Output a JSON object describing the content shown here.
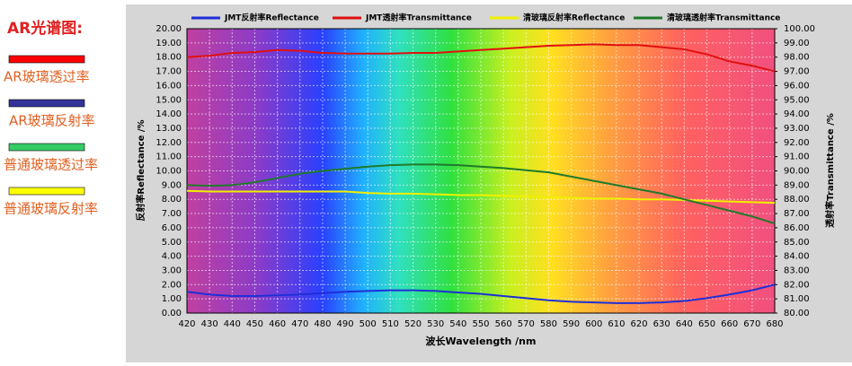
{
  "side_panel": {
    "title": "AR光谱图:",
    "items": [
      {
        "label": "AR玻璃透过率",
        "color": "#ff0000"
      },
      {
        "label": "AR玻璃反射率",
        "color": "#333399"
      },
      {
        "label": "普通玻璃透过率",
        "color": "#33cc66"
      },
      {
        "label": "普通玻璃反射率",
        "color": "#ffff00"
      }
    ]
  },
  "chart_data": {
    "type": "line",
    "x_label": "波长Wavelength /nm",
    "y_label": "反射率Reflectance /%",
    "y2_label": "透射率Transmittance /%",
    "x": [
      420,
      430,
      440,
      450,
      460,
      470,
      480,
      490,
      500,
      510,
      520,
      530,
      540,
      550,
      560,
      570,
      580,
      590,
      600,
      610,
      620,
      630,
      640,
      650,
      660,
      670,
      680
    ],
    "xlim": [
      420,
      680
    ],
    "xticks": [
      420,
      430,
      440,
      450,
      460,
      470,
      480,
      490,
      500,
      510,
      520,
      530,
      540,
      550,
      560,
      570,
      580,
      590,
      600,
      610,
      620,
      630,
      640,
      650,
      660,
      670,
      680
    ],
    "ylim": [
      0,
      20
    ],
    "yticks": [
      {
        "value": 0,
        "label": "0.00"
      },
      {
        "value": 1,
        "label": "1.00"
      },
      {
        "value": 2,
        "label": "2.00"
      },
      {
        "value": 3,
        "label": "3.00"
      },
      {
        "value": 4,
        "label": "4.00"
      },
      {
        "value": 5,
        "label": "5.00"
      },
      {
        "value": 6,
        "label": "6.00"
      },
      {
        "value": 7,
        "label": "7.00"
      },
      {
        "value": 8,
        "label": "8.00"
      },
      {
        "value": 9,
        "label": "9.00"
      },
      {
        "value": 10,
        "label": "10.00"
      },
      {
        "value": 11,
        "label": "11.00"
      },
      {
        "value": 12,
        "label": "12.00"
      },
      {
        "value": 13,
        "label": "13.00"
      },
      {
        "value": 14,
        "label": "14.00"
      },
      {
        "value": 15,
        "label": "15.00"
      },
      {
        "value": 16,
        "label": "16.00"
      },
      {
        "value": 17,
        "label": "17.00"
      },
      {
        "value": 18,
        "label": "18.00"
      },
      {
        "value": 19,
        "label": "19.00"
      },
      {
        "value": 20,
        "label": "20.00"
      }
    ],
    "y2lim": [
      80,
      100
    ],
    "y2ticks": [
      {
        "value": 80,
        "label": "80.00"
      },
      {
        "value": 81,
        "label": "81.00"
      },
      {
        "value": 82,
        "label": "82.00"
      },
      {
        "value": 83,
        "label": "83.00"
      },
      {
        "value": 84,
        "label": "84.00"
      },
      {
        "value": 85,
        "label": "85.00"
      },
      {
        "value": 86,
        "label": "86.00"
      },
      {
        "value": 87,
        "label": "87.00"
      },
      {
        "value": 88,
        "label": "88.00"
      },
      {
        "value": 89,
        "label": "89.00"
      },
      {
        "value": 90,
        "label": "90.00"
      },
      {
        "value": 91,
        "label": "91.00"
      },
      {
        "value": 92,
        "label": "92.00"
      },
      {
        "value": 93,
        "label": "93.00"
      },
      {
        "value": 94,
        "label": "94.00"
      },
      {
        "value": 95,
        "label": "95.00"
      },
      {
        "value": 96,
        "label": "96.00"
      },
      {
        "value": 97,
        "label": "97.00"
      },
      {
        "value": 98,
        "label": "98.00"
      },
      {
        "value": 99,
        "label": "99.00"
      },
      {
        "value": 100,
        "label": "100.00"
      }
    ],
    "grid": true,
    "series": [
      {
        "name": "JMT反射率Reflectance",
        "color": "#1f2fd6",
        "values": [
          1.5,
          1.3,
          1.2,
          1.2,
          1.25,
          1.3,
          1.4,
          1.5,
          1.55,
          1.6,
          1.6,
          1.55,
          1.45,
          1.35,
          1.2,
          1.05,
          0.9,
          0.8,
          0.75,
          0.7,
          0.7,
          0.75,
          0.85,
          1.05,
          1.3,
          1.6,
          2.0
        ]
      },
      {
        "name": "JMT透射率Transmittance",
        "color": "#e01010",
        "axis": "y2",
        "values": [
          98.0,
          98.1,
          98.3,
          98.35,
          98.5,
          98.45,
          98.3,
          98.25,
          98.25,
          98.25,
          98.3,
          98.3,
          98.4,
          98.5,
          98.6,
          98.7,
          98.8,
          98.85,
          98.9,
          98.85,
          98.85,
          98.7,
          98.55,
          98.2,
          97.7,
          97.4,
          97.0
        ]
      },
      {
        "name": "清玻璃反射率Reflectance",
        "color": "#f0f000",
        "values": [
          8.6,
          8.55,
          8.55,
          8.55,
          8.55,
          8.55,
          8.55,
          8.55,
          8.45,
          8.4,
          8.4,
          8.35,
          8.3,
          8.3,
          8.25,
          8.2,
          8.15,
          8.1,
          8.05,
          8.05,
          8.0,
          8.0,
          7.95,
          7.9,
          7.85,
          7.8,
          7.75
        ]
      },
      {
        "name": "清玻璃透射率Transmittance",
        "color": "#1e7a2a",
        "axis": "y2",
        "values": [
          89.0,
          88.95,
          89.0,
          89.2,
          89.5,
          89.8,
          90.0,
          90.15,
          90.3,
          90.4,
          90.45,
          90.45,
          90.4,
          90.3,
          90.2,
          90.05,
          89.9,
          89.6,
          89.3,
          89.0,
          88.7,
          88.4,
          88.0,
          87.6,
          87.2,
          86.8,
          86.3
        ]
      }
    ]
  }
}
